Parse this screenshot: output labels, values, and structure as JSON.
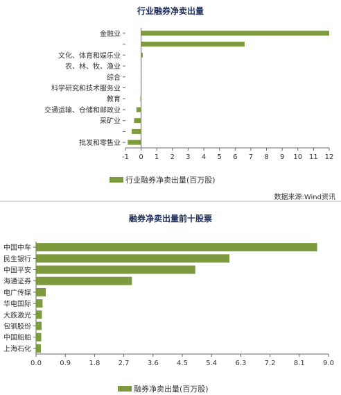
{
  "chart_data": [
    {
      "type": "bar",
      "orientation": "horizontal",
      "title": "行业融券净卖出量",
      "categories": [
        "金融业",
        "",
        "文化、体育和娱乐业",
        "农、林、牧、渔业",
        "综合",
        "科学研究和技术服务业",
        "教育",
        "交通运输、仓储和邮政业",
        "采矿业",
        "",
        "批发和零售业"
      ],
      "series": [
        {
          "name": "行业融券净卖出量(百万股)",
          "values": [
            12.0,
            6.6,
            0.1,
            0.03,
            0.01,
            0.0,
            -0.05,
            -0.3,
            -0.45,
            -0.6,
            -0.85
          ]
        }
      ],
      "x_ticks": [
        "-1",
        "0",
        "1",
        "2",
        "3",
        "4",
        "5",
        "6",
        "7",
        "8",
        "9",
        "10",
        "11",
        "12"
      ],
      "xlim": [
        -1,
        12
      ],
      "grid": false,
      "legend": "bottom",
      "color": "#7d9a3f",
      "source": "数据来源:Wind资讯"
    },
    {
      "type": "bar",
      "orientation": "horizontal",
      "title": "融券净卖出量前十股票",
      "categories": [
        "中国中车",
        "民生银行",
        "中国平安",
        "海通证券",
        "电广传媒",
        "华电国际",
        "大族激光",
        "包钢股份",
        "中国船舶",
        "上海石化"
      ],
      "series": [
        {
          "name": "融券净卖出量(百万股)",
          "values": [
            8.65,
            5.95,
            4.9,
            2.95,
            0.3,
            0.2,
            0.18,
            0.17,
            0.16,
            0.15
          ]
        }
      ],
      "x_ticks": [
        "0.0",
        "0.9",
        "1.8",
        "2.7",
        "3.6",
        "4.5",
        "5.4",
        "6.3",
        "7.2",
        "8.1",
        "9.0"
      ],
      "xlim": [
        0,
        9
      ],
      "grid": false,
      "legend": "bottom",
      "color": "#7d9a3f"
    }
  ]
}
